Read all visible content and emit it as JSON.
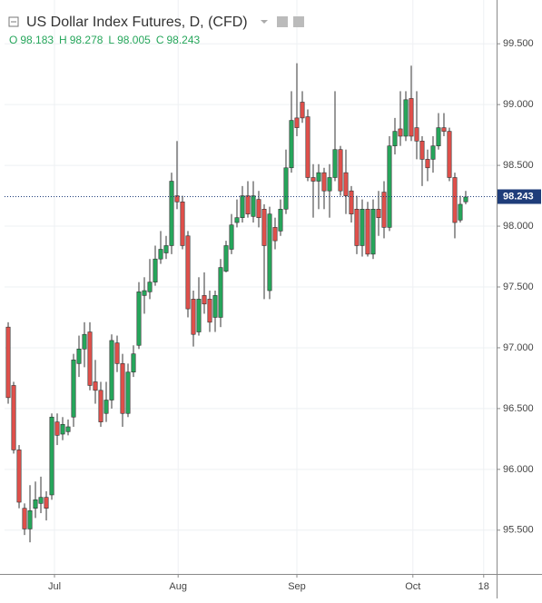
{
  "chart_data": {
    "type": "candlestick",
    "title": "US Dollar Index Futures, D, (CFD)",
    "ohlc_legend": [
      {
        "label": "O",
        "value": 98.183
      },
      {
        "label": "H",
        "value": 98.278
      },
      {
        "label": "L",
        "value": 98.005
      },
      {
        "label": "C",
        "value": 98.243
      }
    ],
    "last_price": 98.243,
    "up_color": "#26a65b",
    "down_color": "#e0504b",
    "grid": true,
    "xlim": [
      -0.67,
      89.67
    ],
    "xticks": [
      {
        "value": 8.5,
        "label": "Jul"
      },
      {
        "value": 31.2,
        "label": "Aug"
      },
      {
        "value": 53,
        "label": "Sep"
      },
      {
        "value": 74.3,
        "label": "Oct"
      },
      {
        "value": 87.3,
        "label": "18"
      }
    ],
    "ylim": [
      95.14,
      99.86
    ],
    "yticks": [
      {
        "value": 95.5,
        "label": "95.500"
      },
      {
        "value": 96,
        "label": "96.000"
      },
      {
        "value": 96.5,
        "label": "96.500"
      },
      {
        "value": 97,
        "label": "97.000"
      },
      {
        "value": 97.5,
        "label": "97.500"
      },
      {
        "value": 98,
        "label": "98.000"
      },
      {
        "value": 98.5,
        "label": "98.500"
      },
      {
        "value": 99,
        "label": "99.000"
      },
      {
        "value": 99.5,
        "label": "99.500"
      }
    ],
    "open": [
      97.17,
      96.69,
      96.16,
      95.68,
      95.51,
      95.68,
      95.72,
      95.77,
      95.79,
      96.39,
      96.29,
      96.31,
      96.43,
      96.87,
      96.99,
      97.13,
      96.72,
      96.65,
      96.46,
      96.57,
      97.04,
      96.87,
      96.46,
      96.8,
      97.02,
      97.43,
      97.46,
      97.54,
      97.73,
      97.78,
      97.84,
      98.25,
      98.2,
      97.92,
      97.4,
      97.13,
      97.43,
      97.4,
      97.25,
      97.25,
      97.63,
      97.81,
      98.03,
      98.07,
      98.25,
      98.08,
      98.22,
      98.14,
      97.47,
      97.99,
      97.96,
      98.14,
      98.48,
      98.89,
      99.02,
      98.9,
      98.4,
      98.37,
      98.44,
      98.29,
      98.4,
      98.63,
      98.44,
      98.29,
      98.14,
      97.84,
      98.14,
      97.77,
      98.14,
      98.28,
      97.99,
      98.66,
      98.8,
      98.74,
      99.05,
      98.81,
      98.7,
      98.55,
      98.55,
      98.66,
      98.81,
      98.78,
      98.4,
      98.05,
      98.2
    ],
    "high": [
      97.21,
      96.72,
      96.2,
      95.72,
      95.87,
      95.9,
      95.94,
      95.82,
      96.46,
      96.46,
      96.43,
      96.41,
      96.95,
      97.1,
      97.21,
      97.21,
      96.9,
      96.72,
      96.72,
      97.11,
      97.1,
      96.95,
      96.87,
      97.02,
      97.54,
      97.58,
      97.73,
      97.84,
      97.96,
      97.92,
      98.44,
      98.7,
      98.25,
      97.96,
      97.47,
      97.58,
      97.62,
      97.47,
      97.47,
      97.73,
      97.88,
      98.1,
      98.22,
      98.33,
      98.37,
      98.37,
      98.29,
      98.18,
      98.16,
      98.07,
      98.22,
      98.63,
      99.11,
      99.34,
      99.11,
      98.96,
      98.51,
      98.51,
      98.48,
      98.51,
      99.11,
      98.66,
      98.63,
      98.33,
      98.25,
      98.22,
      98.2,
      98.22,
      98.29,
      98.37,
      98.74,
      98.89,
      99.11,
      99.11,
      99.32,
      99.11,
      98.74,
      98.63,
      98.74,
      98.93,
      98.93,
      98.81,
      98.44,
      98.25,
      98.29
    ],
    "low": [
      96.54,
      96.13,
      95.68,
      95.46,
      95.4,
      95.6,
      95.64,
      95.58,
      95.75,
      96.2,
      96.24,
      96.28,
      96.35,
      96.76,
      96.84,
      96.65,
      96.54,
      96.35,
      96.39,
      96.5,
      96.8,
      96.35,
      96.43,
      96.76,
      96.99,
      97.28,
      97.4,
      97.51,
      97.69,
      97.73,
      97.77,
      98.14,
      97.81,
      97.25,
      97.01,
      97.1,
      97.28,
      97.13,
      97.13,
      97.17,
      97.62,
      97.77,
      97.99,
      98.03,
      98.07,
      98.03,
      97.99,
      97.4,
      97.4,
      97.81,
      97.92,
      98.1,
      98.44,
      98.74,
      98.85,
      98.37,
      98.07,
      98.14,
      98.14,
      98.07,
      98.37,
      98.25,
      98.1,
      98.03,
      97.77,
      97.75,
      97.75,
      97.73,
      97.92,
      97.9,
      97.96,
      98.59,
      98.66,
      98.7,
      98.7,
      98.55,
      98.33,
      98.37,
      98.44,
      98.63,
      98.74,
      98.37,
      97.9,
      98.03,
      98.18
    ],
    "close": [
      96.59,
      96.16,
      95.73,
      95.51,
      95.66,
      95.75,
      95.77,
      95.68,
      96.43,
      96.28,
      96.37,
      96.35,
      96.9,
      96.99,
      97.11,
      96.69,
      96.65,
      96.39,
      96.57,
      97.06,
      96.87,
      96.46,
      96.8,
      96.95,
      97.46,
      97.47,
      97.54,
      97.73,
      97.81,
      97.84,
      98.37,
      98.2,
      97.84,
      97.32,
      97.11,
      97.4,
      97.36,
      97.21,
      97.43,
      97.66,
      97.84,
      98.01,
      98.07,
      98.25,
      98.1,
      98.25,
      98.07,
      97.84,
      98.1,
      97.88,
      98.14,
      98.48,
      98.87,
      98.81,
      98.89,
      98.4,
      98.37,
      98.44,
      98.29,
      98.4,
      98.63,
      98.29,
      98.25,
      98.1,
      97.84,
      98.14,
      97.77,
      98.14,
      98.07,
      97.99,
      98.66,
      98.78,
      98.74,
      99.04,
      98.74,
      98.7,
      98.55,
      98.48,
      98.66,
      98.81,
      98.78,
      98.4,
      98.03,
      98.18,
      98.24
    ]
  }
}
